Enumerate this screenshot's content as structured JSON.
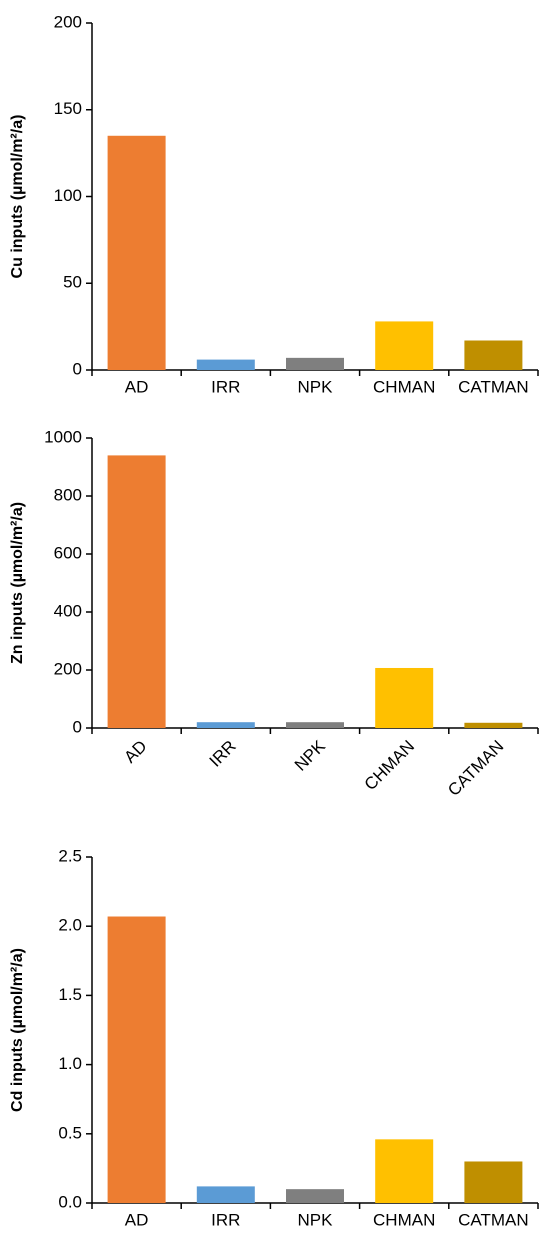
{
  "chart_data": [
    {
      "type": "bar",
      "y_label": "Cu inputs (µmol/m²/a)",
      "categories": [
        "AD",
        "IRR",
        "NPK",
        "CHMAN",
        "CATMAN"
      ],
      "values": [
        135,
        6,
        7,
        28,
        17
      ],
      "colors": [
        "#ED7D31",
        "#5B9BD5",
        "#7F7F7F",
        "#FFC000",
        "#BF8F00"
      ],
      "ylim": [
        0,
        200
      ],
      "yticks": [
        0,
        50,
        100,
        150,
        200
      ]
    },
    {
      "type": "bar",
      "y_label": "Zn inputs (µmol/m²/a)",
      "categories": [
        "AD",
        "IRR",
        "NPK",
        "CHMAN",
        "CATMAN"
      ],
      "values": [
        940,
        20,
        20,
        207,
        18
      ],
      "colors": [
        "#ED7D31",
        "#5B9BD5",
        "#7F7F7F",
        "#FFC000",
        "#BF8F00"
      ],
      "ylim": [
        0,
        1000
      ],
      "yticks": [
        0,
        200,
        400,
        600,
        800,
        1000
      ]
    },
    {
      "type": "bar",
      "y_label": "Cd inputs (µmol/m²/a)",
      "categories": [
        "AD",
        "IRR",
        "NPK",
        "CHMAN",
        "CATMAN"
      ],
      "values": [
        2.07,
        0.12,
        0.1,
        0.46,
        0.3
      ],
      "colors": [
        "#ED7D31",
        "#5B9BD5",
        "#7F7F7F",
        "#FFC000",
        "#BF8F00"
      ],
      "ylim": [
        0,
        2.5
      ],
      "yticks": [
        {
          "value": 0,
          "label": "0.0"
        },
        0.5,
        {
          "value": 1,
          "label": "1.0"
        },
        1.5,
        {
          "value": 2,
          "label": "2.0"
        },
        2.5
      ]
    }
  ]
}
